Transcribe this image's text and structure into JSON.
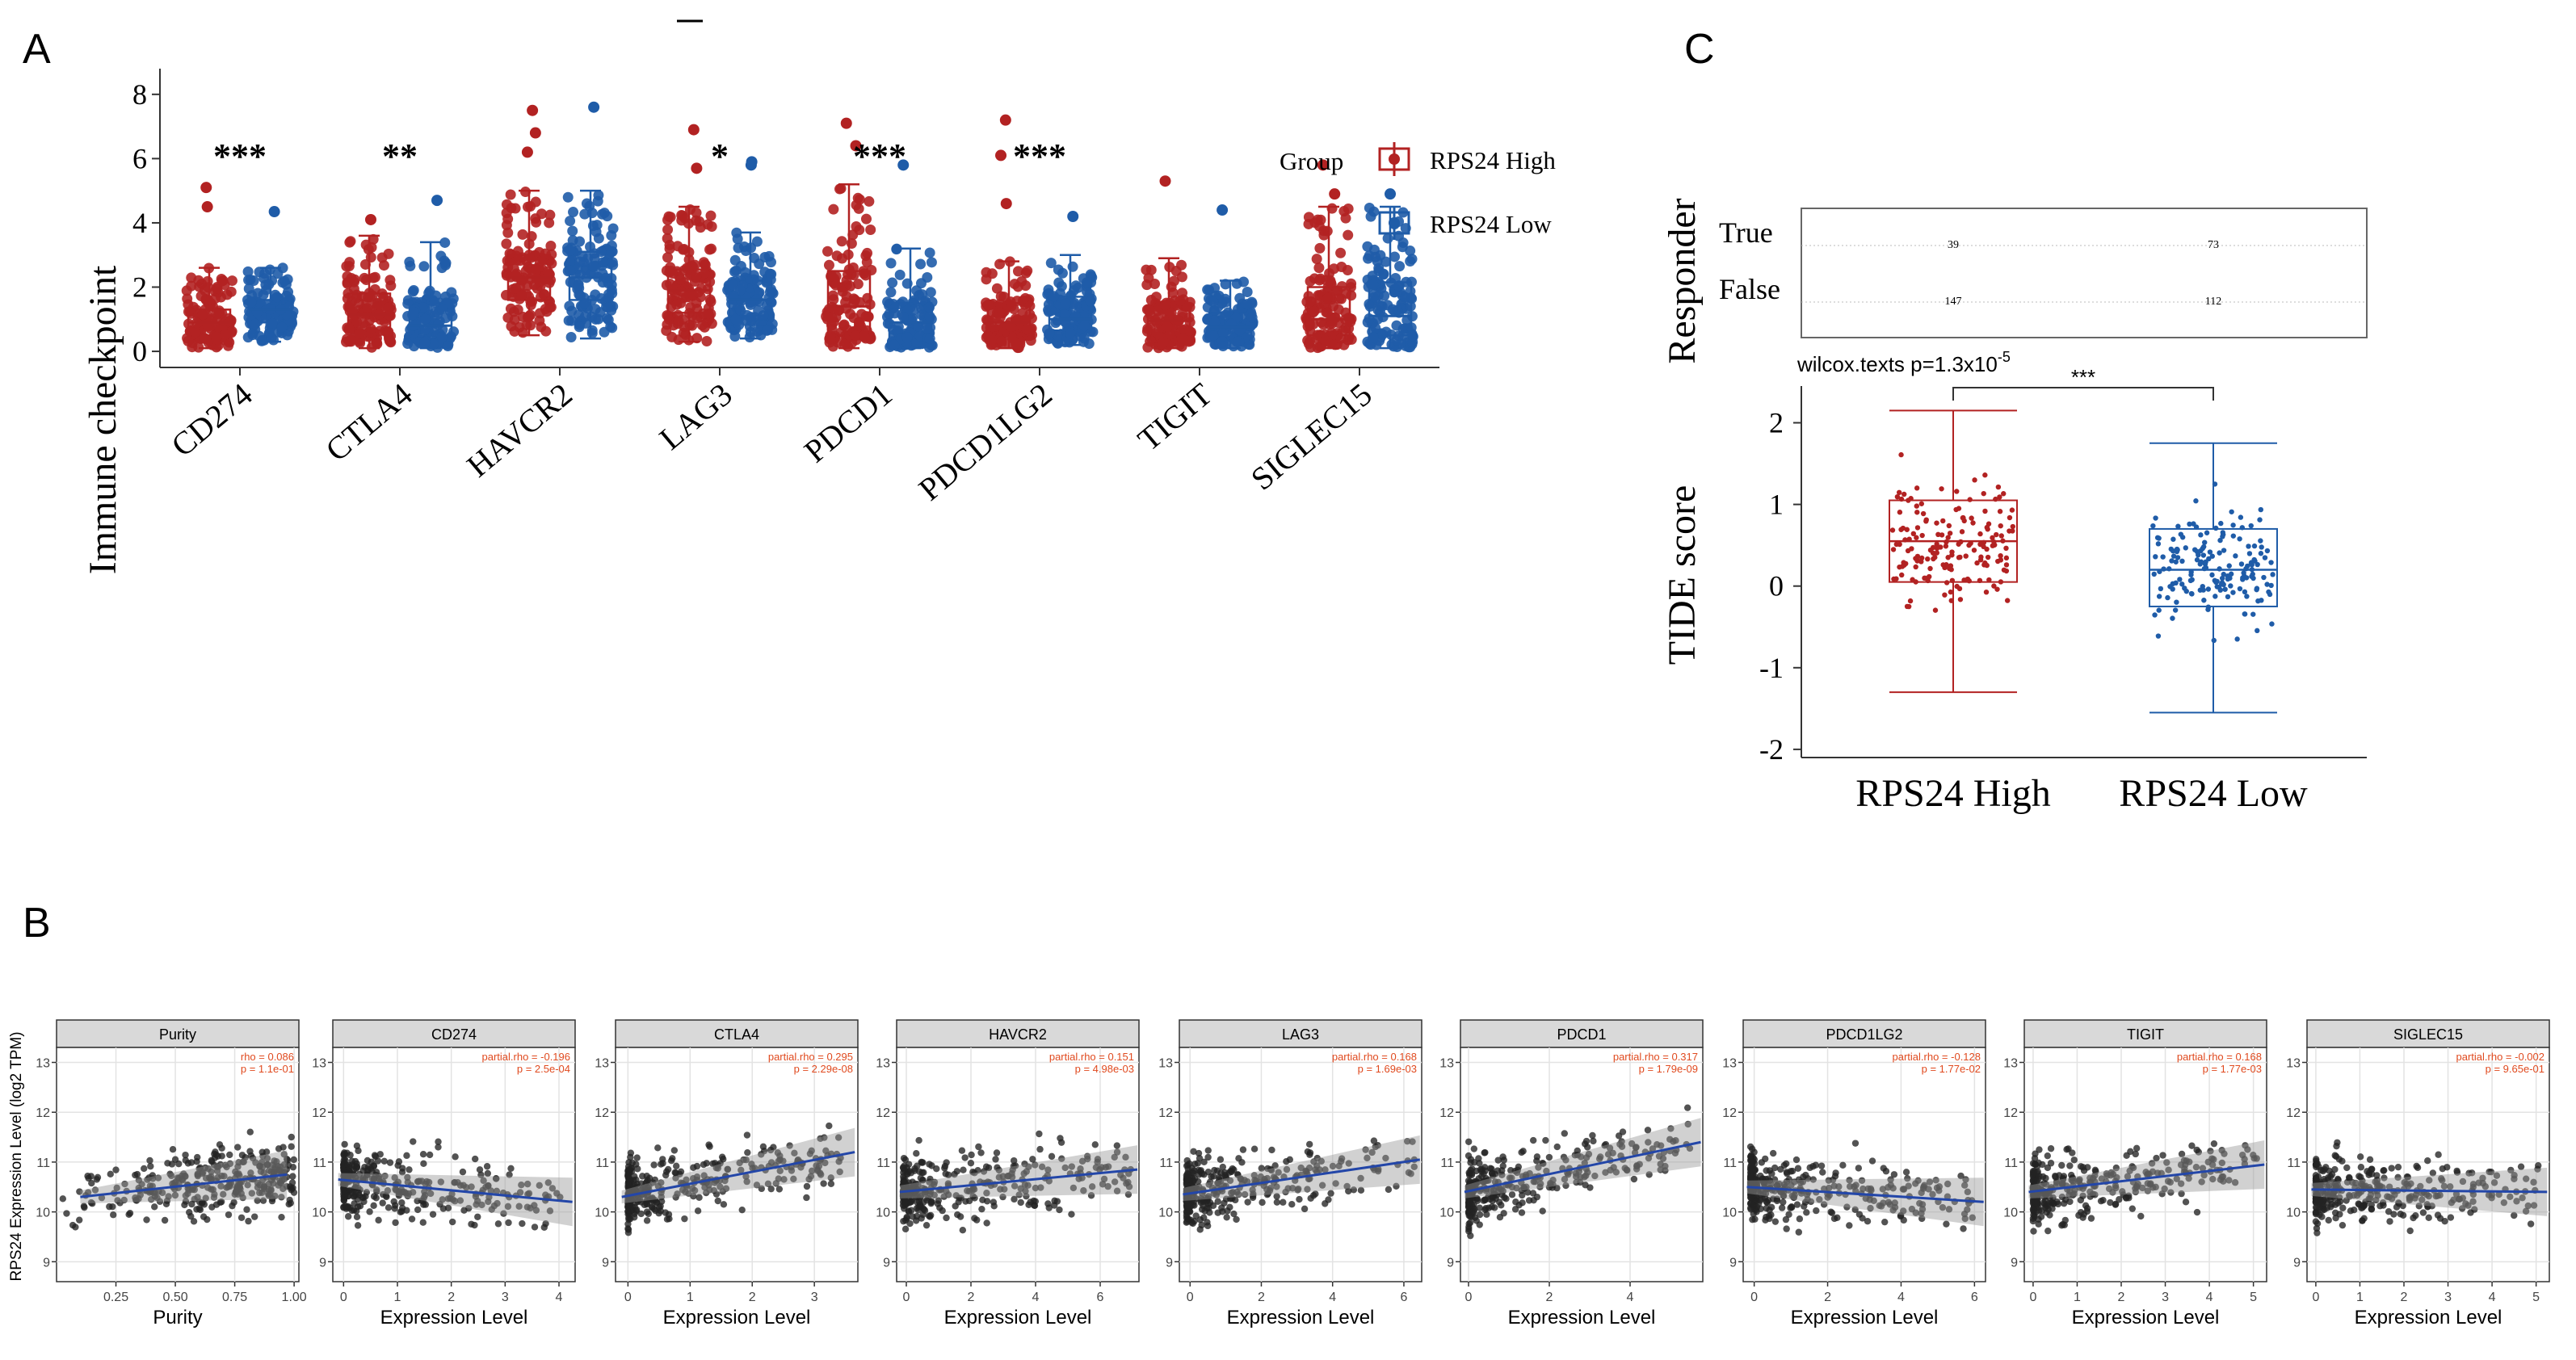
{
  "panels": {
    "a": "A",
    "b": "B",
    "c": "C"
  },
  "chart_data": [
    {
      "type": "boxplot",
      "title": "",
      "ylabel": "Immune checkpoint",
      "ylim": [
        -0.3,
        8.8
      ],
      "yticks": [
        "0",
        "2",
        "4",
        "6",
        "8"
      ],
      "legend": {
        "title": "Group",
        "placement": "top-right",
        "items": [
          "RPS24 High",
          "RPS24 Low"
        ],
        "colors": [
          "#b22222",
          "#1f5ca8"
        ]
      },
      "categories": [
        "CD274",
        "CTLA4",
        "HAVCR2",
        "LAG3",
        "PDCD1",
        "PDCD1LG2",
        "TIGIT",
        "SIGLEC15"
      ],
      "significance": [
        "***",
        "**",
        "",
        "*",
        "***",
        "***",
        "",
        ""
      ],
      "series": [
        {
          "name": "RPS24 High",
          "color": "#b22222",
          "boxes": [
            [
              0.1,
              0.5,
              0.9,
              1.3,
              2.6
            ],
            [
              0.1,
              0.65,
              1.15,
              1.8,
              3.6
            ],
            [
              0.5,
              1.6,
              2.3,
              3.0,
              5.0
            ],
            [
              0.3,
              1.2,
              1.9,
              2.55,
              4.5
            ],
            [
              0.1,
              0.5,
              1.4,
              2.5,
              5.2
            ],
            [
              0.1,
              0.55,
              0.9,
              1.5,
              2.8
            ],
            [
              0.1,
              0.5,
              0.95,
              1.4,
              2.9
            ],
            [
              0.1,
              0.5,
              1.0,
              2.0,
              4.5
            ]
          ],
          "outliers": [
            [
              5.1,
              4.5
            ],
            [
              4.1
            ],
            [
              6.2,
              6.8,
              7.5
            ],
            [
              6.9,
              5.7
            ],
            [
              6.4,
              7.1
            ],
            [
              7.2,
              4.6,
              6.1
            ],
            [
              5.3
            ],
            [
              5.8,
              4.9
            ]
          ]
        },
        {
          "name": "RPS24 Low",
          "color": "#1f5ca8",
          "boxes": [
            [
              0.3,
              0.9,
              1.3,
              1.6,
              2.6
            ],
            [
              0.1,
              0.4,
              0.8,
              1.5,
              3.4
            ],
            [
              0.4,
              1.6,
              2.3,
              3.1,
              5.0
            ],
            [
              0.4,
              1.1,
              1.6,
              2.2,
              3.7
            ],
            [
              0.1,
              0.4,
              0.9,
              1.5,
              3.2
            ],
            [
              0.2,
              0.65,
              1.0,
              1.7,
              3.0
            ],
            [
              0.1,
              0.45,
              0.75,
              1.2,
              2.2
            ],
            [
              0.1,
              0.5,
              1.1,
              2.15,
              4.5
            ]
          ],
          "outliers": [
            [
              4.35
            ],
            [
              4.7
            ],
            [
              7.6
            ],
            [
              5.8,
              5.9
            ],
            [
              5.8
            ],
            [
              4.2
            ],
            [
              4.4
            ],
            [
              4.9
            ]
          ]
        }
      ]
    },
    {
      "type": "scatter",
      "panel": "B",
      "ylabel": "RPS24 Expression Level (log2 TPM)",
      "ylim": [
        8.6,
        13.3
      ],
      "yticks": [
        "9",
        "10",
        "11",
        "12",
        "13"
      ],
      "facets": [
        {
          "title": "Purity",
          "xlabel": "Purity",
          "xticks": [
            "0.25",
            "0.50",
            "0.75",
            "1.00"
          ],
          "xrange": [
            0.0,
            1.02
          ],
          "tickvals": [
            0.25,
            0.5,
            0.75,
            1.0
          ],
          "stat1": "rho = 0.086",
          "stat2": "p = 1.1e-01",
          "fit": [
            10.3,
            10.75
          ]
        },
        {
          "title": "CD274",
          "xlabel": "Expression Level",
          "xticks": [
            "0",
            "1",
            "2",
            "3",
            "4"
          ],
          "xrange": [
            -0.2,
            4.3
          ],
          "tickvals": [
            0,
            1,
            2,
            3,
            4
          ],
          "stat1": "partial.rho = -0.196",
          "stat2": "p = 2.5e-04",
          "fit": [
            10.65,
            10.2
          ]
        },
        {
          "title": "CTLA4",
          "xlabel": "Expression Level",
          "xticks": [
            "0",
            "1",
            "2",
            "3"
          ],
          "xrange": [
            -0.2,
            3.7
          ],
          "tickvals": [
            0,
            1,
            2,
            3
          ],
          "stat1": "partial.rho = 0.295",
          "stat2": "p = 2.29e-08",
          "fit": [
            10.3,
            11.2
          ]
        },
        {
          "title": "HAVCR2",
          "xlabel": "Expression Level",
          "xticks": [
            "0",
            "2",
            "4",
            "6"
          ],
          "xrange": [
            -0.3,
            7.2
          ],
          "tickvals": [
            0,
            2,
            4,
            6
          ],
          "stat1": "partial.rho = 0.151",
          "stat2": "p = 4.98e-03",
          "fit": [
            10.4,
            10.85
          ]
        },
        {
          "title": "LAG3",
          "xlabel": "Expression Level",
          "xticks": [
            "0",
            "2",
            "4",
            "6"
          ],
          "xrange": [
            -0.3,
            6.5
          ],
          "tickvals": [
            0,
            2,
            4,
            6
          ],
          "stat1": "partial.rho = 0.168",
          "stat2": "p = 1.69e-03",
          "fit": [
            10.35,
            11.05
          ]
        },
        {
          "title": "PDCD1",
          "xlabel": "Expression Level",
          "xticks": [
            "0",
            "2",
            "4"
          ],
          "xrange": [
            -0.2,
            5.8
          ],
          "tickvals": [
            0,
            2,
            4
          ],
          "stat1": "partial.rho = 0.317",
          "stat2": "p = 1.79e-09",
          "fit": [
            10.4,
            11.4
          ]
        },
        {
          "title": "PDCD1LG2",
          "xlabel": "Expression Level",
          "xticks": [
            "0",
            "2",
            "4",
            "6"
          ],
          "xrange": [
            -0.3,
            6.3
          ],
          "tickvals": [
            0,
            2,
            4,
            6
          ],
          "stat1": "partial.rho = -0.128",
          "stat2": "p = 1.77e-02",
          "fit": [
            10.5,
            10.2
          ]
        },
        {
          "title": "TIGIT",
          "xlabel": "Expression Level",
          "xticks": [
            "0",
            "1",
            "2",
            "3",
            "4",
            "5"
          ],
          "xrange": [
            -0.2,
            5.3
          ],
          "tickvals": [
            0,
            1,
            2,
            3,
            4,
            5
          ],
          "stat1": "partial.rho = 0.168",
          "stat2": "p = 1.77e-03",
          "fit": [
            10.4,
            10.95
          ]
        },
        {
          "title": "SIGLEC15",
          "xlabel": "Expression Level",
          "xticks": [
            "0",
            "1",
            "2",
            "3",
            "4",
            "5"
          ],
          "xrange": [
            -0.2,
            5.3
          ],
          "tickvals": [
            0,
            1,
            2,
            3,
            4,
            5
          ],
          "stat1": "partial.rho = -0.002",
          "stat2": "p = 9.65e-01",
          "fit": [
            10.45,
            10.4
          ]
        }
      ]
    },
    {
      "type": "boxplot",
      "panel": "C",
      "ylabel": "TIDE score",
      "ylim": [
        -2.1,
        2.45
      ],
      "yticks": [
        "2",
        "1",
        "0",
        "-1",
        "-2"
      ],
      "categories": [
        "RPS24 High",
        "RPS24 Low"
      ],
      "colors": [
        "#b22222",
        "#1f5ca8"
      ],
      "boxes": [
        [
          -1.3,
          0.05,
          0.55,
          1.05,
          2.15
        ],
        [
          -1.55,
          -0.25,
          0.2,
          0.7,
          1.75
        ]
      ],
      "test": "wilcox.texts p=1.3x10",
      "test_exp": "-5",
      "significance": "***",
      "responder": {
        "ylabel": "Responder",
        "rows": [
          "True",
          "False"
        ],
        "counts": [
          [
            "39",
            "73"
          ],
          [
            "147",
            "112"
          ]
        ]
      }
    }
  ]
}
